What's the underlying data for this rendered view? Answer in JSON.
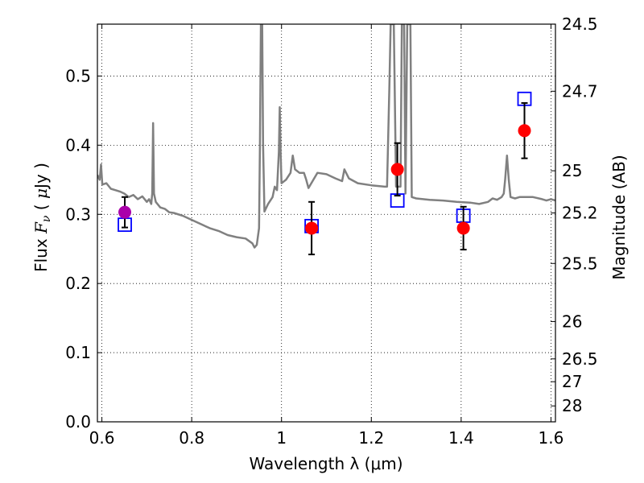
{
  "chart_data": {
    "type": "scatter",
    "xlabel": "Wavelength  λ (μm)",
    "ylabel": "Flux  F_ν  ( μJy )",
    "ylabel_right": "Magnitude (AB)",
    "xlim": [
      0.59,
      1.61
    ],
    "ylim": [
      0.0,
      0.575
    ],
    "grid": true,
    "x_ticks": [
      0.6,
      0.8,
      1.0,
      1.2,
      1.4,
      1.6
    ],
    "x_tick_labels": [
      "0.6",
      "0.8",
      "1",
      "1.2",
      "1.4",
      "1.6"
    ],
    "y_ticks": [
      0.0,
      0.1,
      0.2,
      0.3,
      0.4,
      0.5
    ],
    "y_tick_labels": [
      "0.0",
      "0.1",
      "0.2",
      "0.3",
      "0.4",
      "0.5"
    ],
    "mag_ticks": [
      {
        "label": "24.5",
        "flux": 0.575
      },
      {
        "label": "24.7",
        "flux": 0.478
      },
      {
        "label": "25",
        "flux": 0.363
      },
      {
        "label": "25.2",
        "flux": 0.302
      },
      {
        "label": "25.5",
        "flux": 0.229
      },
      {
        "label": "26",
        "flux": 0.145
      },
      {
        "label": "26.5",
        "flux": 0.091
      },
      {
        "label": "27",
        "flux": 0.058
      },
      {
        "label": "28",
        "flux": 0.023
      }
    ],
    "series": [
      {
        "kind": "line",
        "color": "#808080",
        "points": [
          [
            0.59,
            0.357
          ],
          [
            0.595,
            0.35
          ],
          [
            0.598,
            0.372
          ],
          [
            0.601,
            0.343
          ],
          [
            0.61,
            0.345
          ],
          [
            0.62,
            0.337
          ],
          [
            0.63,
            0.335
          ],
          [
            0.64,
            0.333
          ],
          [
            0.65,
            0.33
          ],
          [
            0.66,
            0.325
          ],
          [
            0.67,
            0.328
          ],
          [
            0.68,
            0.322
          ],
          [
            0.69,
            0.326
          ],
          [
            0.7,
            0.318
          ],
          [
            0.705,
            0.322
          ],
          [
            0.71,
            0.315
          ],
          [
            0.712,
            0.33
          ],
          [
            0.714,
            0.432
          ],
          [
            0.716,
            0.33
          ],
          [
            0.72,
            0.318
          ],
          [
            0.73,
            0.31
          ],
          [
            0.74,
            0.308
          ],
          [
            0.75,
            0.303
          ],
          [
            0.76,
            0.302
          ],
          [
            0.78,
            0.298
          ],
          [
            0.8,
            0.292
          ],
          [
            0.82,
            0.286
          ],
          [
            0.84,
            0.28
          ],
          [
            0.86,
            0.276
          ],
          [
            0.88,
            0.27
          ],
          [
            0.9,
            0.267
          ],
          [
            0.92,
            0.265
          ],
          [
            0.935,
            0.258
          ],
          [
            0.94,
            0.252
          ],
          [
            0.945,
            0.256
          ],
          [
            0.95,
            0.28
          ],
          [
            0.952,
            0.4
          ],
          [
            0.954,
            0.575
          ],
          [
            0.957,
            0.575
          ],
          [
            0.959,
            0.4
          ],
          [
            0.962,
            0.304
          ],
          [
            0.97,
            0.315
          ],
          [
            0.98,
            0.325
          ],
          [
            0.985,
            0.34
          ],
          [
            0.99,
            0.335
          ],
          [
            0.994,
            0.39
          ],
          [
            0.996,
            0.455
          ],
          [
            0.998,
            0.39
          ],
          [
            1.0,
            0.345
          ],
          [
            1.01,
            0.35
          ],
          [
            1.02,
            0.36
          ],
          [
            1.025,
            0.385
          ],
          [
            1.03,
            0.365
          ],
          [
            1.04,
            0.36
          ],
          [
            1.05,
            0.36
          ],
          [
            1.055,
            0.35
          ],
          [
            1.06,
            0.338
          ],
          [
            1.08,
            0.36
          ],
          [
            1.1,
            0.358
          ],
          [
            1.12,
            0.352
          ],
          [
            1.135,
            0.348
          ],
          [
            1.14,
            0.365
          ],
          [
            1.15,
            0.352
          ],
          [
            1.17,
            0.345
          ],
          [
            1.2,
            0.342
          ],
          [
            1.23,
            0.34
          ],
          [
            1.235,
            0.34
          ],
          [
            1.24,
            0.48
          ],
          [
            1.243,
            0.575
          ],
          [
            1.25,
            0.575
          ],
          [
            1.255,
            0.34
          ],
          [
            1.262,
            0.34
          ],
          [
            1.265,
            0.34
          ],
          [
            1.268,
            0.575
          ],
          [
            1.273,
            0.575
          ],
          [
            1.276,
            0.33
          ],
          [
            1.28,
            0.575
          ],
          [
            1.287,
            0.575
          ],
          [
            1.29,
            0.325
          ],
          [
            1.3,
            0.323
          ],
          [
            1.33,
            0.321
          ],
          [
            1.36,
            0.32
          ],
          [
            1.39,
            0.318
          ],
          [
            1.42,
            0.317
          ],
          [
            1.44,
            0.315
          ],
          [
            1.46,
            0.318
          ],
          [
            1.47,
            0.323
          ],
          [
            1.48,
            0.321
          ],
          [
            1.49,
            0.325
          ],
          [
            1.495,
            0.33
          ],
          [
            1.498,
            0.35
          ],
          [
            1.502,
            0.385
          ],
          [
            1.506,
            0.35
          ],
          [
            1.51,
            0.325
          ],
          [
            1.52,
            0.323
          ],
          [
            1.53,
            0.325
          ],
          [
            1.56,
            0.325
          ],
          [
            1.58,
            0.322
          ],
          [
            1.59,
            0.32
          ],
          [
            1.6,
            0.322
          ],
          [
            1.61,
            0.32
          ]
        ]
      },
      {
        "kind": "points",
        "marker": "open-square",
        "color": "#0000ff",
        "points": [
          [
            0.651,
            0.285
          ],
          [
            1.067,
            0.283
          ],
          [
            1.258,
            0.32
          ],
          [
            1.405,
            0.298
          ],
          [
            1.541,
            0.467
          ]
        ]
      },
      {
        "kind": "points",
        "marker": "filled-circle-errorbar",
        "color": "#ff0000",
        "points": [
          {
            "x": 0.651,
            "y": 0.303,
            "err": 0.022,
            "color": "#aa00aa"
          },
          {
            "x": 1.067,
            "y": 0.28,
            "err": 0.038,
            "color": "#ff0000"
          },
          {
            "x": 1.258,
            "y": 0.365,
            "err": 0.038,
            "color": "#ff0000"
          },
          {
            "x": 1.405,
            "y": 0.28,
            "err": 0.031,
            "color": "#ff0000"
          },
          {
            "x": 1.541,
            "y": 0.421,
            "err": 0.04,
            "color": "#ff0000"
          }
        ]
      }
    ]
  }
}
